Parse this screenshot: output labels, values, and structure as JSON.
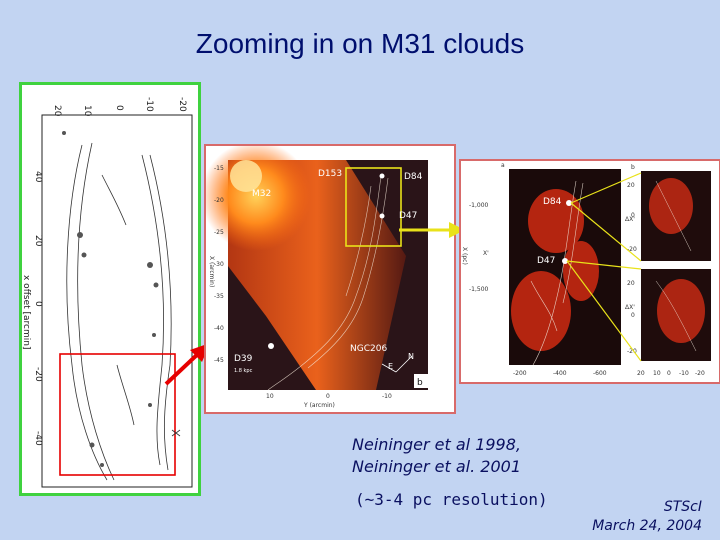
{
  "slide": {
    "title": "Zooming in on M31 clouds",
    "caption_lines": [
      "Neininger et al 1998,",
      "Neininger et al. 2001"
    ],
    "resolution_note": "(~3-4 pc resolution)",
    "footer_org": "STScI",
    "footer_date": "March 24, 2004"
  },
  "left_panel": {
    "y_axis_label": "x offset [arcmin]",
    "y_ticks": [
      "40",
      "20",
      "0",
      "-20",
      "-40"
    ],
    "top_ticks": [
      "20",
      "10",
      "0",
      "-10",
      "-20"
    ]
  },
  "mid_panel": {
    "labels": [
      "D153",
      "M32",
      "D84",
      "D47",
      "NGC206",
      "D39"
    ],
    "x_axis_label": "Y (arcmin)",
    "y_axis_label": "X (arcmin)",
    "y_ticks": [
      "-15",
      "-20",
      "-25",
      "-30",
      "-35",
      "-40",
      "-45"
    ],
    "x_ticks": [
      "10",
      "0",
      "-10"
    ],
    "corner_letter": "b",
    "compass_n": "N",
    "compass_e": "E",
    "footnote": "1.8 kpc"
  },
  "right_panel": {
    "panel_a": "a",
    "panel_b": "b",
    "labels": [
      "D84",
      "D47"
    ],
    "y_axis_label": "X (pc)",
    "y_ticks": [
      "-1,000",
      "-1,500"
    ],
    "x_ticks": [
      "-200",
      "-400",
      "-600"
    ],
    "x_prime": "X'",
    "b_y_ticks": [
      "20",
      "0",
      "-20",
      "20",
      "0",
      "-20"
    ],
    "b_x_ticks": [
      "20",
      "10",
      "0",
      "-10",
      "-20"
    ],
    "delta_x": "ΔX'"
  },
  "colors": {
    "background": "#c2d4f2",
    "title": "#000f6e",
    "left_border": "#3fd23f",
    "panel_border": "#d86a6a",
    "zoom_box": "#e60000",
    "arrow": "#e60000",
    "highlight_box": "#e9e21a"
  }
}
